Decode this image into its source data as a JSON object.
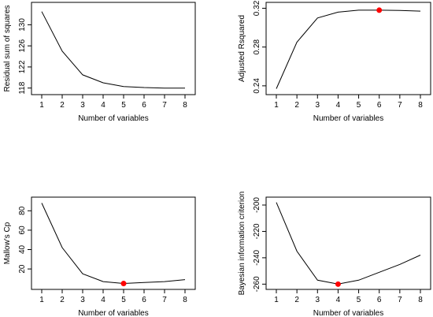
{
  "chart_data": [
    {
      "type": "line",
      "xlabel": "Number of variables",
      "ylabel": "Residual sum of squares",
      "x": [
        1,
        2,
        3,
        4,
        5,
        6,
        7,
        8
      ],
      "values": [
        132.5,
        125.0,
        120.5,
        119.0,
        118.3,
        118.1,
        118.0,
        118.0
      ],
      "xlim": [
        1,
        8
      ],
      "ylim": [
        117.5,
        133.5
      ],
      "xticks": [
        1,
        2,
        3,
        4,
        5,
        6,
        7,
        8
      ],
      "yticks": [
        118,
        122,
        126,
        130
      ],
      "highlight": null,
      "grid": false
    },
    {
      "type": "line",
      "xlabel": "Number of variables",
      "ylabel": "Adjusted Rsquared",
      "x": [
        1,
        2,
        3,
        4,
        5,
        6,
        7,
        8
      ],
      "values": [
        0.237,
        0.285,
        0.31,
        0.316,
        0.318,
        0.318,
        0.3178,
        0.317
      ],
      "xlim": [
        1,
        8
      ],
      "ylim": [
        0.235,
        0.322
      ],
      "xticks": [
        1,
        2,
        3,
        4,
        5,
        6,
        7,
        8
      ],
      "yticks": [
        0.24,
        0.28,
        0.32
      ],
      "highlight": {
        "x": 6,
        "y": 0.318,
        "color": "#ff0000"
      },
      "grid": false
    },
    {
      "type": "line",
      "xlabel": "Number of variables",
      "ylabel": "Mallow's Cp",
      "x": [
        1,
        2,
        3,
        4,
        5,
        6,
        7,
        8
      ],
      "values": [
        88,
        42,
        15,
        7,
        5,
        6,
        7,
        9
      ],
      "xlim": [
        1,
        8
      ],
      "ylim": [
        3,
        90
      ],
      "xticks": [
        1,
        2,
        3,
        4,
        5,
        6,
        7,
        8
      ],
      "yticks": [
        20,
        40,
        60,
        80
      ],
      "highlight": {
        "x": 5,
        "y": 5,
        "color": "#ff0000"
      },
      "grid": false
    },
    {
      "type": "line",
      "xlabel": "Number of variables",
      "ylabel": "Bayesian information criterion",
      "x": [
        1,
        2,
        3,
        4,
        5,
        6,
        7,
        8
      ],
      "values": [
        -198,
        -235,
        -257,
        -260,
        -257,
        -251,
        -245,
        -238
      ],
      "xlim": [
        1,
        8
      ],
      "ylim": [
        -261,
        -197
      ],
      "xticks": [
        1,
        2,
        3,
        4,
        5,
        6,
        7,
        8
      ],
      "yticks": [
        -260,
        -240,
        -220,
        -200
      ],
      "highlight": {
        "x": 4,
        "y": -260,
        "color": "#ff0000"
      },
      "grid": false
    }
  ]
}
